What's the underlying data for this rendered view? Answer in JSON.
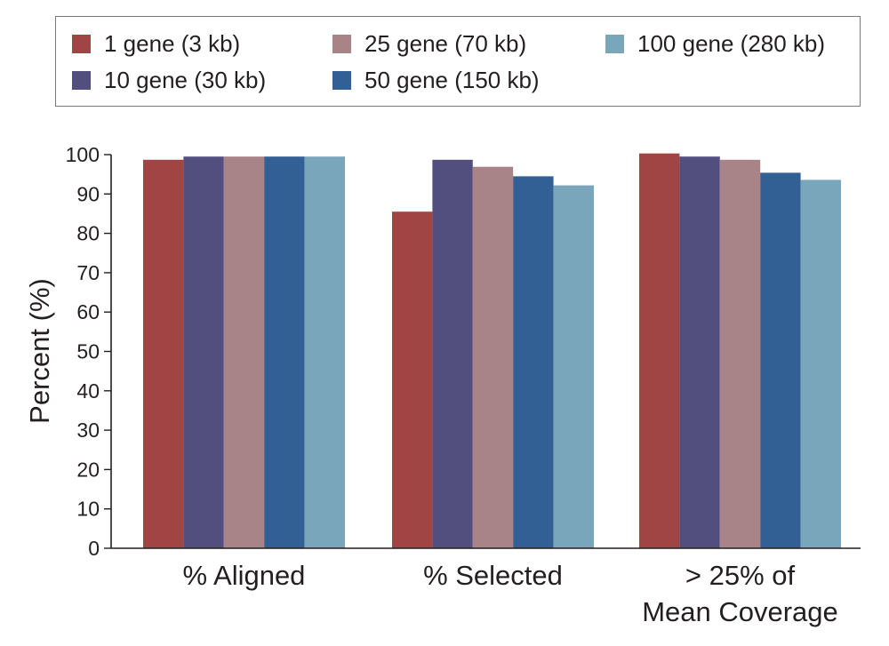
{
  "chart_data": {
    "type": "bar",
    "categories": [
      [
        "% Aligned"
      ],
      [
        "% Selected"
      ],
      [
        "> 25% of",
        "Mean Coverage"
      ]
    ],
    "series": [
      {
        "name": "1 gene (3 kb)",
        "color": "#a14444",
        "values": [
          98.7,
          85.5,
          100.3
        ]
      },
      {
        "name": "10 gene (30 kb)",
        "color": "#524e7e",
        "values": [
          99.5,
          98.7,
          99.5
        ]
      },
      {
        "name": "25 gene (70 kb)",
        "color": "#a88388",
        "values": [
          99.5,
          96.9,
          98.7
        ]
      },
      {
        "name": "50 gene (150 kb)",
        "color": "#325f94",
        "values": [
          99.5,
          94.5,
          95.4
        ]
      },
      {
        "name": "100 gene (280 kb)",
        "color": "#7aa6bc",
        "values": [
          99.5,
          92.2,
          93.6
        ]
      }
    ],
    "ylabel": "Percent (%)",
    "xlabel": "",
    "ylim": [
      0,
      100
    ],
    "yticks": [
      0,
      10,
      20,
      30,
      40,
      50,
      60,
      70,
      80,
      90,
      100
    ],
    "grid": false,
    "legend_position": "top"
  }
}
